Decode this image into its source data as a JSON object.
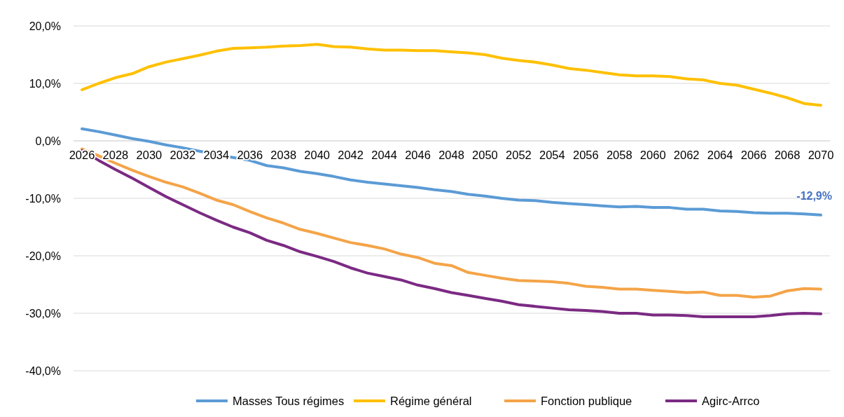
{
  "chart_data": {
    "type": "line",
    "x": [
      2026,
      2027,
      2028,
      2029,
      2030,
      2031,
      2032,
      2033,
      2034,
      2035,
      2036,
      2037,
      2038,
      2039,
      2040,
      2041,
      2042,
      2043,
      2044,
      2045,
      2046,
      2047,
      2048,
      2049,
      2050,
      2051,
      2052,
      2053,
      2054,
      2055,
      2056,
      2057,
      2058,
      2059,
      2060,
      2061,
      2062,
      2063,
      2064,
      2065,
      2066,
      2067,
      2068,
      2069,
      2070
    ],
    "series": [
      {
        "name": "Masses Tous régimes",
        "color": "#5b9bd5",
        "values": [
          2.1,
          1.6,
          1.0,
          0.4,
          -0.1,
          -0.7,
          -1.2,
          -1.8,
          -2.4,
          -2.9,
          -3.4,
          -4.3,
          -4.7,
          -5.3,
          -5.7,
          -6.2,
          -6.8,
          -7.2,
          -7.5,
          -7.8,
          -8.1,
          -8.5,
          -8.8,
          -9.3,
          -9.6,
          -10.0,
          -10.3,
          -10.4,
          -10.7,
          -10.9,
          -11.1,
          -11.3,
          -11.5,
          -11.4,
          -11.6,
          -11.6,
          -11.9,
          -11.9,
          -12.2,
          -12.3,
          -12.5,
          -12.6,
          -12.6,
          -12.7,
          -12.9
        ]
      },
      {
        "name": "Régime général",
        "color": "#ffc000",
        "values": [
          8.9,
          10.0,
          11.0,
          11.7,
          12.9,
          13.7,
          14.3,
          14.9,
          15.6,
          16.1,
          16.2,
          16.3,
          16.5,
          16.6,
          16.8,
          16.4,
          16.3,
          16.0,
          15.8,
          15.8,
          15.7,
          15.7,
          15.5,
          15.3,
          15.0,
          14.4,
          14.0,
          13.7,
          13.2,
          12.6,
          12.3,
          11.9,
          11.5,
          11.3,
          11.3,
          11.2,
          10.8,
          10.6,
          10.0,
          9.7,
          9.0,
          8.3,
          7.5,
          6.5,
          6.2
        ]
      },
      {
        "name": "Fonction publique",
        "color": "#f4a448",
        "values": [
          -1.4,
          -2.6,
          -3.9,
          -5.1,
          -6.2,
          -7.2,
          -8.0,
          -9.1,
          -10.3,
          -11.1,
          -12.3,
          -13.4,
          -14.3,
          -15.4,
          -16.1,
          -16.9,
          -17.7,
          -18.2,
          -18.8,
          -19.7,
          -20.3,
          -21.3,
          -21.7,
          -22.9,
          -23.4,
          -23.9,
          -24.3,
          -24.4,
          -24.5,
          -24.8,
          -25.3,
          -25.5,
          -25.8,
          -25.8,
          -26.0,
          -26.2,
          -26.4,
          -26.3,
          -26.9,
          -26.9,
          -27.2,
          -27.0,
          -26.1,
          -25.7,
          -25.8
        ]
      },
      {
        "name": "Agirc-Arrco",
        "color": "#7b2a83",
        "values": [
          -1.7,
          -3.4,
          -5.0,
          -6.5,
          -8.1,
          -9.7,
          -11.1,
          -12.5,
          -13.8,
          -15.0,
          -16.0,
          -17.3,
          -18.2,
          -19.3,
          -20.1,
          -21.0,
          -22.1,
          -23.0,
          -23.6,
          -24.2,
          -25.1,
          -25.7,
          -26.4,
          -26.9,
          -27.4,
          -27.9,
          -28.5,
          -28.8,
          -29.1,
          -29.4,
          -29.5,
          -29.7,
          -30.0,
          -30.0,
          -30.3,
          -30.3,
          -30.4,
          -30.6,
          -30.6,
          -30.6,
          -30.6,
          -30.4,
          -30.1,
          -30.0,
          -30.1
        ]
      }
    ],
    "xlim": [
      2026,
      2070
    ],
    "xticks": [
      2026,
      2028,
      2030,
      2032,
      2034,
      2036,
      2038,
      2040,
      2042,
      2044,
      2046,
      2048,
      2050,
      2052,
      2054,
      2056,
      2058,
      2060,
      2062,
      2064,
      2066,
      2068,
      2070
    ],
    "ylim": [
      -40,
      20
    ],
    "yticks": [
      {
        "value": -40,
        "label": "-40,0%"
      },
      {
        "value": -30,
        "label": "-30,0%"
      },
      {
        "value": -20,
        "label": "-20,0%"
      },
      {
        "value": -10,
        "label": "-10,0%"
      },
      {
        "value": 0,
        "label": "0,0%"
      },
      {
        "value": 10,
        "label": "10,0%"
      },
      {
        "value": 20,
        "label": "20,0%"
      }
    ],
    "annotations": [
      {
        "text": "-12,9%",
        "x": 2070,
        "y": -12.9
      }
    ],
    "grid": "y",
    "legend": "bottom",
    "line_style": "solid",
    "marker": "none"
  }
}
